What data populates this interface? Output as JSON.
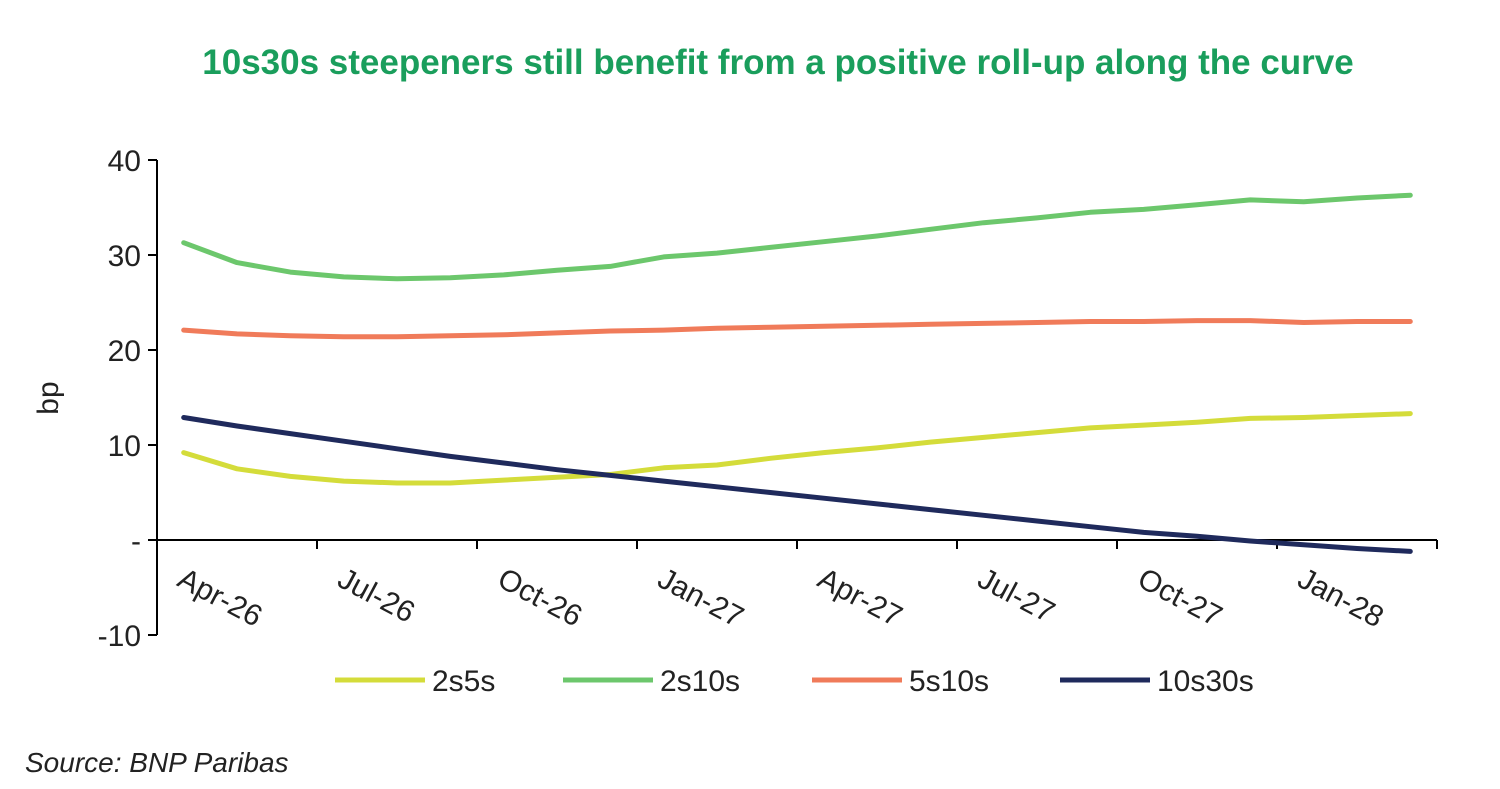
{
  "chart_data": {
    "type": "line",
    "title": "10s30s steepeners still benefit from a positive roll-up along the curve",
    "ylabel": "bp",
    "source": "Source: BNP Paribas",
    "categories": [
      "Apr-26",
      null,
      null,
      "Jul-26",
      null,
      null,
      "Oct-26",
      null,
      null,
      "Jan-27",
      null,
      null,
      "Apr-27",
      null,
      null,
      "Jul-27",
      null,
      null,
      "Oct-27",
      null,
      null,
      "Jan-28",
      null,
      null
    ],
    "ylim": [
      -10,
      40
    ],
    "yticks": [
      -10,
      {
        "value": 0,
        "label": "-"
      },
      10,
      20,
      30,
      40
    ],
    "legend": "bottom",
    "series": [
      {
        "name": "2s5s",
        "color": "#d4dc3a",
        "values": [
          9.2,
          7.5,
          6.7,
          6.2,
          6.0,
          6.0,
          6.3,
          6.6,
          6.9,
          7.6,
          7.9,
          8.6,
          9.2,
          9.7,
          10.3,
          10.8,
          11.3,
          11.8,
          12.1,
          12.4,
          12.8,
          12.9,
          13.1,
          13.3
        ]
      },
      {
        "name": "2s10s",
        "color": "#6cc76c",
        "values": [
          31.3,
          29.2,
          28.2,
          27.7,
          27.5,
          27.6,
          27.9,
          28.4,
          28.8,
          29.8,
          30.2,
          30.8,
          31.4,
          32.0,
          32.7,
          33.4,
          33.9,
          34.5,
          34.8,
          35.3,
          35.8,
          35.6,
          36.0,
          36.3
        ]
      },
      {
        "name": "5s10s",
        "color": "#f07b5a",
        "values": [
          22.1,
          21.7,
          21.5,
          21.4,
          21.4,
          21.5,
          21.6,
          21.8,
          22.0,
          22.1,
          22.3,
          22.4,
          22.5,
          22.6,
          22.7,
          22.8,
          22.9,
          23.0,
          23.0,
          23.1,
          23.1,
          22.9,
          23.0,
          23.0
        ]
      },
      {
        "name": "10s30s",
        "color": "#1f2a5c",
        "values": [
          12.9,
          12.0,
          11.2,
          10.4,
          9.6,
          8.8,
          8.1,
          7.4,
          6.8,
          6.2,
          5.6,
          5.0,
          4.4,
          3.8,
          3.2,
          2.6,
          2.0,
          1.4,
          0.8,
          0.4,
          -0.1,
          -0.5,
          -0.9,
          -1.2
        ]
      }
    ]
  }
}
